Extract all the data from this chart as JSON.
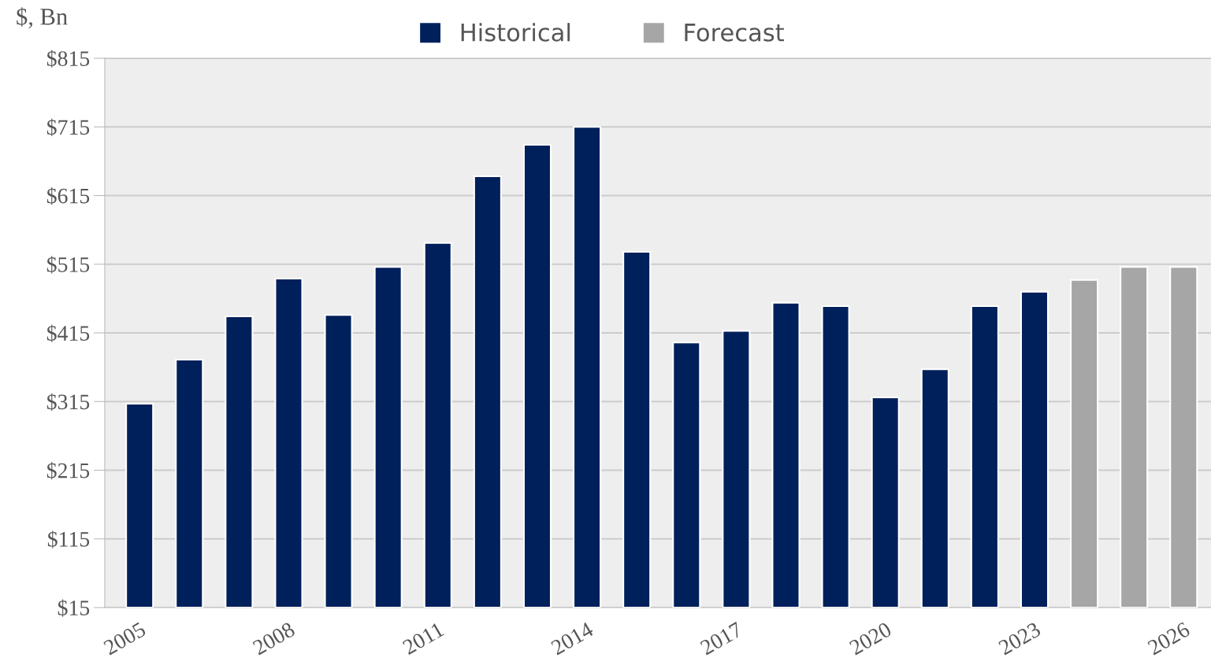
{
  "chart_data": {
    "type": "bar",
    "ylabel": "$, Bn",
    "categories": [
      "2005",
      null,
      null,
      "2008",
      null,
      null,
      "2011",
      null,
      null,
      "2014",
      null,
      null,
      "2017",
      null,
      null,
      "2020",
      null,
      null,
      "2023",
      null,
      null,
      "2026"
    ],
    "series": [
      {
        "name": "Historical",
        "color": "#00205b",
        "values": [
          312,
          376,
          439,
          494,
          441,
          511,
          546,
          643,
          689,
          715,
          533,
          401,
          418,
          459,
          454,
          321,
          362,
          454,
          475,
          null,
          null,
          null
        ]
      },
      {
        "name": "Forecast",
        "color": "#a6a6a6",
        "values": [
          null,
          null,
          null,
          null,
          null,
          null,
          null,
          null,
          null,
          null,
          null,
          null,
          null,
          null,
          null,
          null,
          null,
          null,
          null,
          492,
          511,
          511
        ]
      }
    ],
    "ylim": [
      15,
      815
    ],
    "yticks": [
      {
        "value": 15,
        "label": "$15"
      },
      {
        "value": 115,
        "label": "$115"
      },
      {
        "value": 215,
        "label": "$215"
      },
      {
        "value": 315,
        "label": "$315"
      },
      {
        "value": 415,
        "label": "$415"
      },
      {
        "value": 515,
        "label": "$515"
      },
      {
        "value": 615,
        "label": "$615"
      },
      {
        "value": 715,
        "label": "$715"
      },
      {
        "value": 815,
        "label": "$815"
      }
    ],
    "grid": "y",
    "legend": "top"
  }
}
